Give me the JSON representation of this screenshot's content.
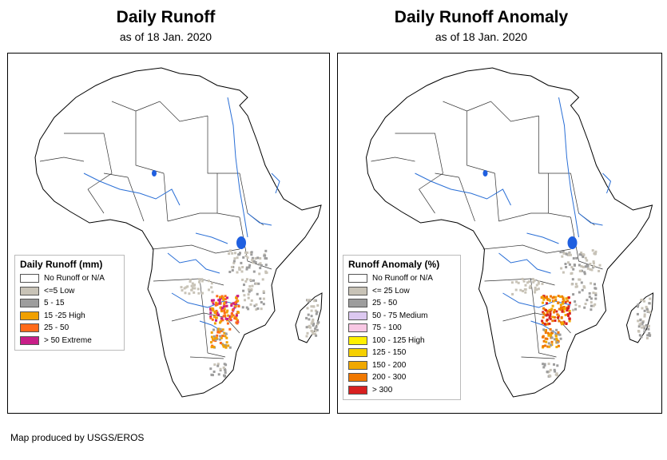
{
  "left_map": {
    "title": "Daily Runoff",
    "subtitle": "as of 18 Jan. 2020",
    "legend": {
      "title": "Daily Runoff (mm)",
      "items": [
        {
          "label": "No Runoff or N/A",
          "color": "#ffffff"
        },
        {
          "label": "<=5 Low",
          "color": "#c8c3b7"
        },
        {
          "label": "5 - 15",
          "color": "#9d9d9d"
        },
        {
          "label": "15 -25 High",
          "color": "#f0a000"
        },
        {
          "label": "25 - 50",
          "color": "#ff6a1a"
        },
        {
          "label": "> 50 Extreme",
          "color": "#c81e88"
        }
      ]
    }
  },
  "right_map": {
    "title": "Daily Runoff Anomaly",
    "subtitle": "as of 18 Jan. 2020",
    "legend": {
      "title": "Runoff Anomaly (%)",
      "items": [
        {
          "label": "No Runoff or N/A",
          "color": "#ffffff"
        },
        {
          "label": "<= 25 Low",
          "color": "#c8c3b7"
        },
        {
          "label": "25 - 50",
          "color": "#9d9d9d"
        },
        {
          "label": "50 - 75 Medium",
          "color": "#dcc8f0"
        },
        {
          "label": "75 - 100",
          "color": "#f8c8e4"
        },
        {
          "label": "100 - 125 High",
          "color": "#fff000"
        },
        {
          "label": "125 - 150",
          "color": "#f5d000"
        },
        {
          "label": "150 - 200",
          "color": "#f0a800"
        },
        {
          "label": "200 - 300",
          "color": "#f07800"
        },
        {
          "label": "> 300",
          "color": "#d82020"
        }
      ]
    }
  },
  "credit": "Map produced by USGS/EROS",
  "colors": {
    "river": "#2a6fd6",
    "lake": "#1f5fe0",
    "border": "#000000"
  }
}
